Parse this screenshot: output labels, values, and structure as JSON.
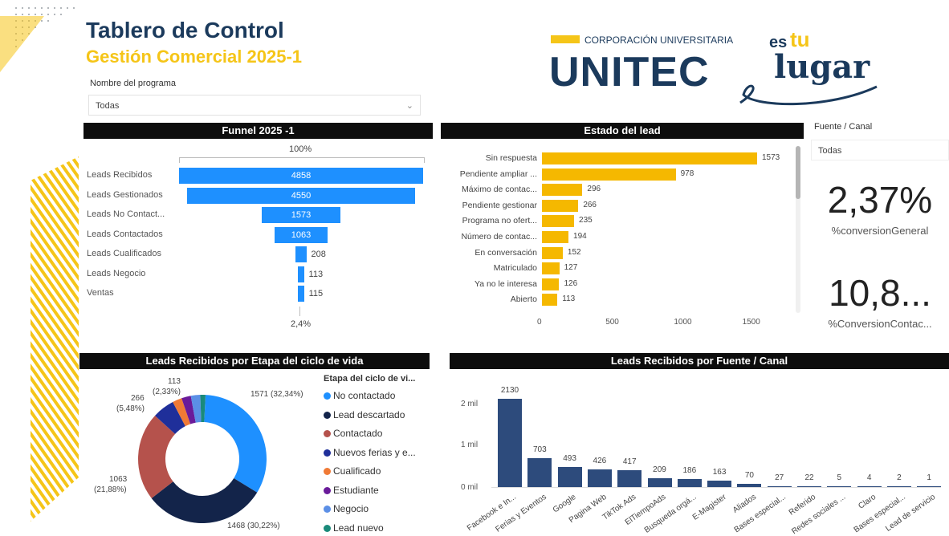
{
  "header": {
    "title": "Tablero de Control",
    "subtitle": "Gestión Comercial 2025-1"
  },
  "logo": {
    "corp": "CORPORACIÓN UNIVERSITARIA",
    "name": "UNITEC",
    "slogan_es": "es",
    "slogan_tu": "tu",
    "slogan_lugar": "lugar"
  },
  "filters": {
    "programa_label": "Nombre del programa",
    "programa_value": "Todas",
    "fuente_label": "Fuente / Canal",
    "fuente_value": "Todas"
  },
  "funnel": {
    "title": "Funnel 2025 -1",
    "top_pct": "100%",
    "bottom_pct": "2,4%",
    "stages": [
      {
        "label": "Leads Recibidos",
        "value": 4858
      },
      {
        "label": "Leads Gestionados",
        "value": 4550
      },
      {
        "label": "Leads No Contact...",
        "value": 1573
      },
      {
        "label": "Leads Contactados",
        "value": 1063
      },
      {
        "label": "Leads Cualificados",
        "value": 208
      },
      {
        "label": "Leads Negocio",
        "value": 113
      },
      {
        "label": "Ventas",
        "value": 115
      }
    ]
  },
  "estado": {
    "title": "Estado del lead",
    "axis_ticks": [
      "0",
      "500",
      "1000",
      "1500"
    ],
    "items": [
      {
        "label": "Sin respuesta",
        "value": 1573
      },
      {
        "label": "Pendiente ampliar ...",
        "value": 978
      },
      {
        "label": "Máximo de contac...",
        "value": 296
      },
      {
        "label": "Pendiente gestionar",
        "value": 266
      },
      {
        "label": "Programa no ofert...",
        "value": 235
      },
      {
        "label": "Número de contac...",
        "value": 194
      },
      {
        "label": "En conversación",
        "value": 152
      },
      {
        "label": "Matriculado",
        "value": 127
      },
      {
        "label": "Ya no le interesa",
        "value": 126
      },
      {
        "label": "Abierto",
        "value": 113
      }
    ]
  },
  "kpis": [
    {
      "value": "2,37%",
      "label": "%conversionGeneral"
    },
    {
      "value": "10,8...",
      "label": "%ConversionContac..."
    }
  ],
  "ciclo": {
    "title": "Leads Recibidos por Etapa del ciclo de vida",
    "legend_title": "Etapa del ciclo de vi...",
    "legend": [
      {
        "label": "No contactado",
        "color": "#1e90ff"
      },
      {
        "label": "Lead descartado",
        "color": "#13244a"
      },
      {
        "label": "Contactado",
        "color": "#b5524c"
      },
      {
        "label": "Nuevos ferias y e...",
        "color": "#1f2f9a"
      },
      {
        "label": "Cualificado",
        "color": "#f07a36"
      },
      {
        "label": "Estudiante",
        "color": "#6a1b9a"
      },
      {
        "label": "Negocio",
        "color": "#5b8fe6"
      },
      {
        "label": "Lead nuevo",
        "color": "#1a8a7a"
      }
    ],
    "labels": {
      "no_contactado": "1571 (32,34%)",
      "lead_descartado": "1468 (30,22%)",
      "contactado_v": "1063",
      "contactado_p": "(21,88%)",
      "nuevos_v": "266",
      "nuevos_p": "(5,48%)",
      "cualif_v": "113",
      "cualif_p": "(2,33%)"
    }
  },
  "chart_data": {
    "type": "bar",
    "title": "Leads Recibidos por Fuente / Canal",
    "categories": [
      "Facebook e In...",
      "Ferias y Eventos",
      "Google",
      "Pagina Web",
      "TikTok Ads",
      "ElTiempoAds",
      "Busqueda orgá...",
      "E-Magister",
      "Aliados",
      "Bases especial...",
      "Referido",
      "Redes sociales ...",
      "Claro",
      "Bases especial...",
      "Lead de servicio"
    ],
    "values": [
      2130,
      703,
      493,
      426,
      417,
      209,
      186,
      163,
      70,
      27,
      22,
      5,
      4,
      2,
      1
    ],
    "y_ticks": [
      "2 mil",
      "1 mil",
      "0 mil"
    ],
    "ylim": [
      0,
      2400
    ],
    "color": "#2d4b7c"
  }
}
